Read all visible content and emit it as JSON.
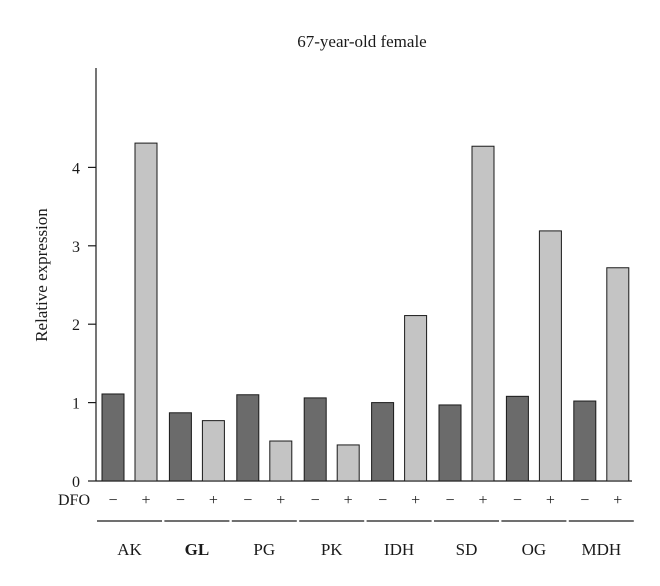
{
  "chart_data": {
    "type": "bar",
    "title": "67-year-old female",
    "ylabel": "Relative expression",
    "xlabel": "",
    "ylim": [
      0,
      5
    ],
    "yticks": [
      "0",
      "1",
      "2",
      "3",
      "4"
    ],
    "treatment_label": "DFO",
    "treatment_marks": [
      "−",
      "+"
    ],
    "categories": [
      "AK",
      "GL",
      "PG",
      "PK",
      "IDH",
      "SD",
      "OG",
      "MDH"
    ],
    "series": [
      {
        "values": [
          1.11,
          0.87,
          1.1,
          1.06,
          1.0,
          0.97,
          1.08,
          1.02
        ]
      },
      {
        "values": [
          4.31,
          0.77,
          0.51,
          0.46,
          2.11,
          4.27,
          3.19,
          2.72
        ]
      }
    ],
    "colors": [
      "#6b6b6b",
      "#c4c4c4"
    ],
    "grid": false,
    "legend": "none"
  }
}
